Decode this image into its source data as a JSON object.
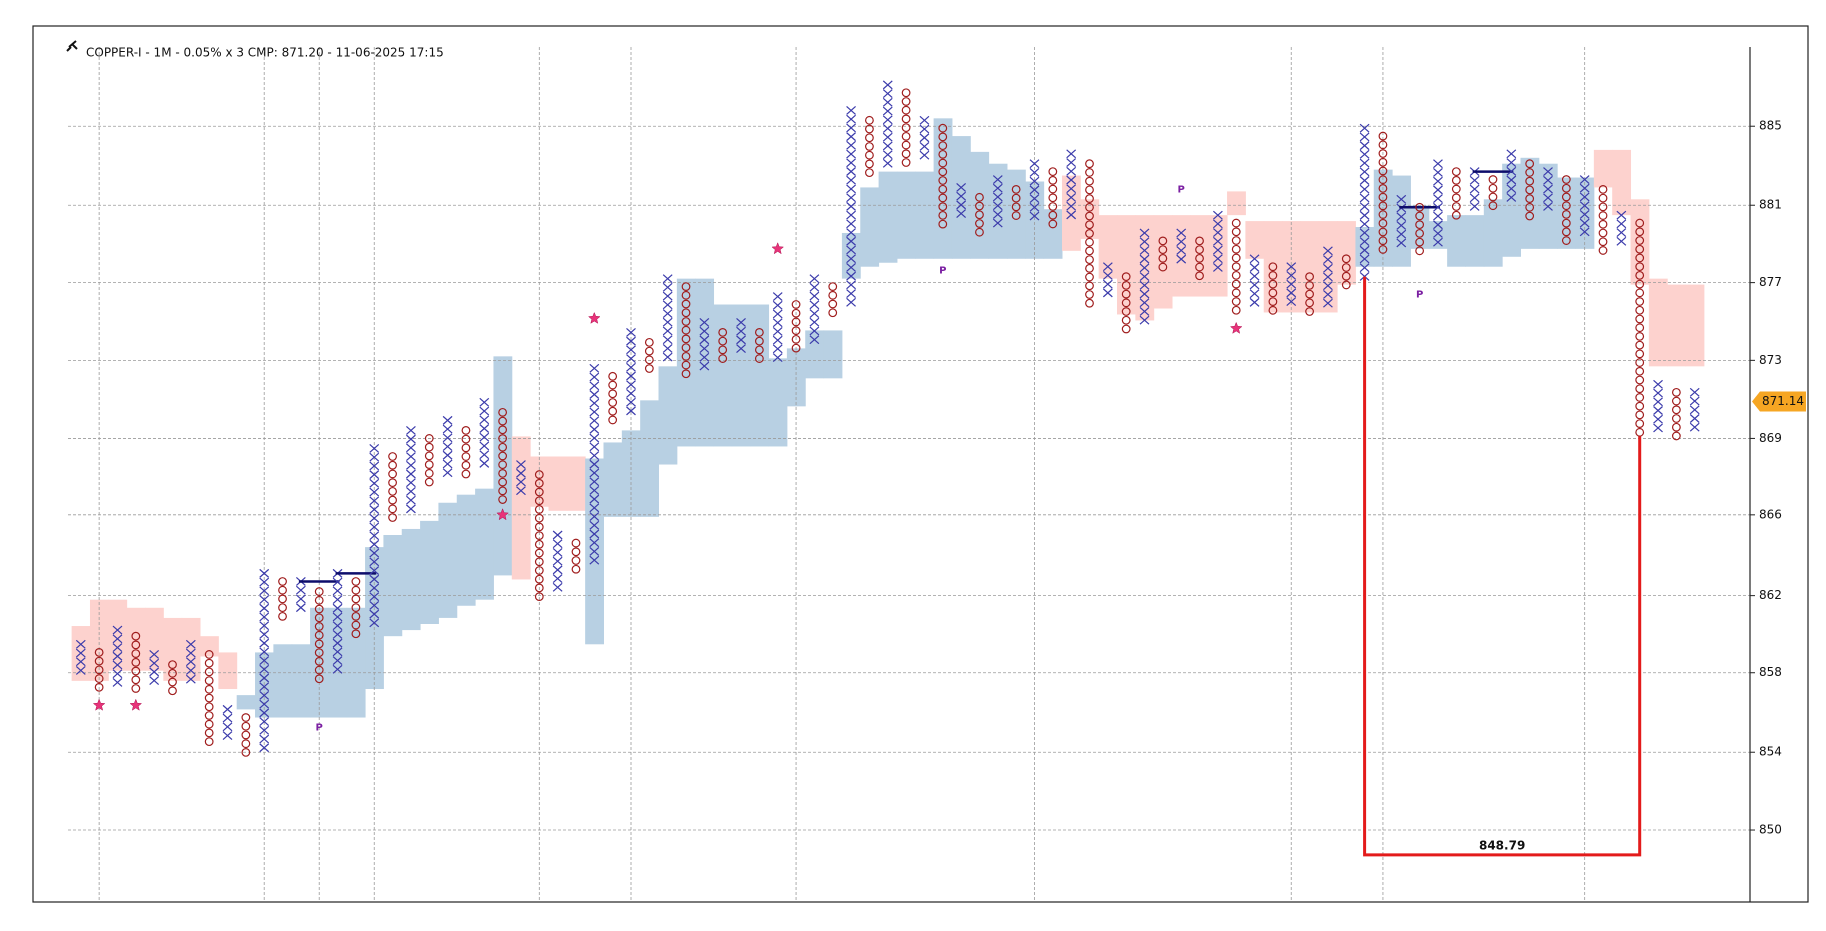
{
  "chart_data": {
    "type": "point-and-figure",
    "title": "COPPER-I - 1M - 0.05% x 3 CMP: 871.20 - 11-06-2025 17:15",
    "log_scale": true,
    "box_percent": 0.05,
    "ylim": [
      846.5,
      890.1
    ],
    "yticks": [
      {
        "value": 850,
        "label": "850"
      },
      {
        "value": 853.8,
        "label": "854"
      },
      {
        "value": 857.7,
        "label": "858"
      },
      {
        "value": 861.5,
        "label": "862"
      },
      {
        "value": 865.5,
        "label": "866"
      },
      {
        "value": 869.3,
        "label": "869"
      },
      {
        "value": 873.2,
        "label": "873"
      },
      {
        "value": 877.1,
        "label": "877"
      },
      {
        "value": 881.0,
        "label": "881"
      },
      {
        "value": 885.0,
        "label": "885"
      }
    ],
    "grid": true,
    "colors": {
      "x": "#3b3bab",
      "o": "#a01d1d",
      "cloud_up": "#b8d0e3",
      "cloud_down": "#fdd2ce",
      "star": "#e8337a",
      "label": "#7b1fa2",
      "line": "#0d0d6b",
      "target": "#e31b1b",
      "tag": "#f6a623"
    },
    "columns": [
      {
        "type": "X",
        "high": 859.1,
        "low": 857.8
      },
      {
        "type": "O",
        "high": 858.7,
        "low": 856.9,
        "star": 856.1
      },
      {
        "type": "X",
        "high": 859.8,
        "low": 857.4
      },
      {
        "type": "O",
        "high": 859.5,
        "low": 856.9,
        "star": 856.1
      },
      {
        "type": "X",
        "high": 858.6,
        "low": 857.3
      },
      {
        "type": "O",
        "high": 858.1,
        "low": 856.9
      },
      {
        "type": "X",
        "high": 859.1,
        "low": 857.4
      },
      {
        "type": "O",
        "high": 858.6,
        "low": 854.3
      },
      {
        "type": "X",
        "high": 855.9,
        "low": 854.7
      },
      {
        "type": "O",
        "high": 855.5,
        "low": 853.8
      },
      {
        "type": "X",
        "high": 862.6,
        "low": 854.2
      },
      {
        "type": "O",
        "high": 862.2,
        "low": 860.4
      },
      {
        "type": "X",
        "high": 862.2,
        "low": 860.9,
        "line": 862.2
      },
      {
        "type": "O",
        "high": 861.7,
        "low": 857.4,
        "label": "P",
        "label_value": 855.0
      },
      {
        "type": "X",
        "high": 862.6,
        "low": 857.8,
        "line": 862.6
      },
      {
        "type": "O",
        "high": 862.2,
        "low": 859.6
      },
      {
        "type": "X",
        "high": 868.8,
        "low": 860.0
      },
      {
        "type": "O",
        "high": 868.4,
        "low": 865.5
      },
      {
        "type": "X",
        "high": 869.7,
        "low": 865.8
      },
      {
        "type": "O",
        "high": 869.3,
        "low": 867.2
      },
      {
        "type": "X",
        "high": 870.2,
        "low": 867.6
      },
      {
        "type": "O",
        "high": 869.7,
        "low": 867.6
      },
      {
        "type": "X",
        "high": 871.1,
        "low": 868.0
      },
      {
        "type": "O",
        "high": 870.6,
        "low": 866.2,
        "star": 865.5
      },
      {
        "type": "X",
        "high": 868.0,
        "low": 866.7
      },
      {
        "type": "O",
        "high": 867.5,
        "low": 861.4
      },
      {
        "type": "X",
        "high": 864.5,
        "low": 861.9
      },
      {
        "type": "O",
        "high": 864.1,
        "low": 862.7
      },
      {
        "type": "X",
        "high": 872.8,
        "low": 863.2,
        "star": 875.3
      },
      {
        "type": "O",
        "high": 872.4,
        "low": 870.2
      },
      {
        "type": "X",
        "high": 874.6,
        "low": 870.7
      },
      {
        "type": "O",
        "high": 874.1,
        "low": 872.9
      },
      {
        "type": "X",
        "high": 877.3,
        "low": 873.4
      },
      {
        "type": "O",
        "high": 876.9,
        "low": 872.5
      },
      {
        "type": "X",
        "high": 875.1,
        "low": 872.9
      },
      {
        "type": "O",
        "high": 874.6,
        "low": 873.4
      },
      {
        "type": "X",
        "high": 875.1,
        "low": 873.8
      },
      {
        "type": "O",
        "high": 874.6,
        "low": 873.4
      },
      {
        "type": "X",
        "high": 876.4,
        "low": 873.4,
        "star": 878.8
      },
      {
        "type": "O",
        "high": 876.0,
        "low": 873.8
      },
      {
        "type": "X",
        "high": 877.3,
        "low": 874.3
      },
      {
        "type": "O",
        "high": 876.9,
        "low": 875.5
      },
      {
        "type": "X",
        "high": 885.8,
        "low": 876.0
      },
      {
        "type": "O",
        "high": 885.3,
        "low": 882.7
      },
      {
        "type": "X",
        "high": 887.1,
        "low": 883.1
      },
      {
        "type": "O",
        "high": 886.7,
        "low": 883.2
      },
      {
        "type": "X",
        "high": 885.3,
        "low": 883.7
      },
      {
        "type": "O",
        "high": 884.9,
        "low": 880.2,
        "label": "P",
        "label_value": 877.7
      },
      {
        "type": "X",
        "high": 881.9,
        "low": 880.5
      },
      {
        "type": "O",
        "high": 881.4,
        "low": 879.7
      },
      {
        "type": "X",
        "high": 882.3,
        "low": 880.1
      },
      {
        "type": "O",
        "high": 881.8,
        "low": 880.5
      },
      {
        "type": "X",
        "high": 883.1,
        "low": 880.5
      },
      {
        "type": "O",
        "high": 882.7,
        "low": 880.1
      },
      {
        "type": "X",
        "high": 883.6,
        "low": 880.5
      },
      {
        "type": "O",
        "high": 883.1,
        "low": 876.2
      },
      {
        "type": "X",
        "high": 877.9,
        "low": 876.6
      },
      {
        "type": "O",
        "high": 877.4,
        "low": 874.8
      },
      {
        "type": "X",
        "high": 879.6,
        "low": 875.2
      },
      {
        "type": "O",
        "high": 879.2,
        "low": 877.9
      },
      {
        "type": "X",
        "high": 879.6,
        "low": 878.4,
        "label": "P",
        "label_value": 881.8
      },
      {
        "type": "O",
        "high": 879.2,
        "low": 877.4
      },
      {
        "type": "X",
        "high": 880.5,
        "low": 877.9
      },
      {
        "type": "O",
        "high": 880.1,
        "low": 875.6,
        "star": 874.8
      },
      {
        "type": "X",
        "high": 878.3,
        "low": 876.1
      },
      {
        "type": "O",
        "high": 877.9,
        "low": 875.6
      },
      {
        "type": "X",
        "high": 877.9,
        "low": 876.1
      },
      {
        "type": "O",
        "high": 877.4,
        "low": 875.6
      },
      {
        "type": "X",
        "high": 878.7,
        "low": 876.1
      },
      {
        "type": "O",
        "high": 878.3,
        "low": 877.0
      },
      {
        "type": "X",
        "high": 884.9,
        "low": 877.4
      },
      {
        "type": "O",
        "high": 884.5,
        "low": 878.7
      },
      {
        "type": "X",
        "high": 881.3,
        "low": 879.2,
        "line": 880.9
      },
      {
        "type": "O",
        "high": 880.9,
        "low": 878.8,
        "label": "P",
        "label_value": 876.5
      },
      {
        "type": "X",
        "high": 883.1,
        "low": 879.2
      },
      {
        "type": "O",
        "high": 882.7,
        "low": 880.5
      },
      {
        "type": "X",
        "high": 882.7,
        "low": 881.0,
        "line": 882.7
      },
      {
        "type": "O",
        "high": 882.3,
        "low": 881.0
      },
      {
        "type": "X",
        "high": 883.6,
        "low": 881.4
      },
      {
        "type": "O",
        "high": 883.1,
        "low": 880.5
      },
      {
        "type": "X",
        "high": 882.7,
        "low": 881.0
      },
      {
        "type": "O",
        "high": 882.3,
        "low": 879.2
      },
      {
        "type": "X",
        "high": 882.3,
        "low": 879.6
      },
      {
        "type": "O",
        "high": 881.8,
        "low": 878.8
      },
      {
        "type": "X",
        "high": 880.5,
        "low": 879.2
      },
      {
        "type": "O",
        "high": 880.1,
        "low": 869.4
      },
      {
        "type": "X",
        "high": 872.0,
        "low": 869.8
      },
      {
        "type": "O",
        "high": 871.6,
        "low": 869.4
      },
      {
        "type": "X",
        "high": 871.6,
        "low": 869.8
      }
    ],
    "cloud": {
      "span_a": [
        857.3,
        857.3,
        857.8,
        857.8,
        857.8,
        857.3,
        857.3,
        858.5,
        856.9,
        856.6,
        858.7,
        859.1,
        859.1,
        860.9,
        860.9,
        860.9,
        863.9,
        864.5,
        864.8,
        865.2,
        866.1,
        866.5,
        866.8,
        873.4,
        862.3,
        865.9,
        865.7,
        865.7,
        868.3,
        869.1,
        869.7,
        871.2,
        872.9,
        877.3,
        877.3,
        876.0,
        876.0,
        876.0,
        873.3,
        873.8,
        874.7,
        874.7,
        879.6,
        881.9,
        882.7,
        882.7,
        882.7,
        885.4,
        884.5,
        883.7,
        883.1,
        882.8,
        882.2,
        880.8,
        878.7,
        879.3,
        877.3,
        875.5,
        875.2,
        875.8,
        876.4,
        876.4,
        876.4,
        880.5,
        878.3,
        875.6,
        875.6,
        875.6,
        875.6,
        877.0,
        879.9,
        882.8,
        882.5,
        881.0,
        880.2,
        880.5,
        880.5,
        881.3,
        883.1,
        883.4,
        883.1,
        882.4,
        882.4,
        881.9,
        880.5,
        877.0,
        872.9,
        872.9,
        872.9
      ],
      "span_b": [
        860.0,
        861.3,
        861.3,
        860.9,
        860.9,
        860.4,
        860.4,
        859.5,
        858.7,
        855.9,
        855.5,
        855.5,
        855.5,
        855.5,
        855.5,
        855.5,
        856.9,
        859.5,
        859.8,
        860.1,
        860.4,
        861.0,
        861.3,
        862.5,
        869.4,
        868.4,
        868.4,
        868.4,
        859.1,
        865.4,
        865.4,
        865.4,
        868.0,
        868.9,
        868.9,
        868.9,
        868.9,
        868.9,
        868.9,
        870.9,
        872.3,
        872.3,
        877.3,
        877.9,
        878.1,
        878.3,
        878.3,
        878.3,
        878.3,
        878.3,
        878.3,
        878.3,
        878.3,
        878.3,
        882.5,
        881.3,
        880.5,
        880.5,
        880.5,
        880.5,
        880.5,
        880.5,
        880.5,
        881.7,
        880.2,
        880.2,
        880.2,
        880.2,
        880.2,
        880.2,
        877.9,
        877.9,
        877.9,
        878.8,
        878.8,
        877.9,
        877.9,
        877.9,
        878.4,
        878.8,
        878.8,
        878.8,
        878.8,
        883.8,
        883.8,
        881.3,
        877.3,
        877.0,
        877.0
      ]
    },
    "target": {
      "value": 848.79,
      "from_column": 70,
      "to_column": 85
    },
    "last_price": 871.14
  }
}
